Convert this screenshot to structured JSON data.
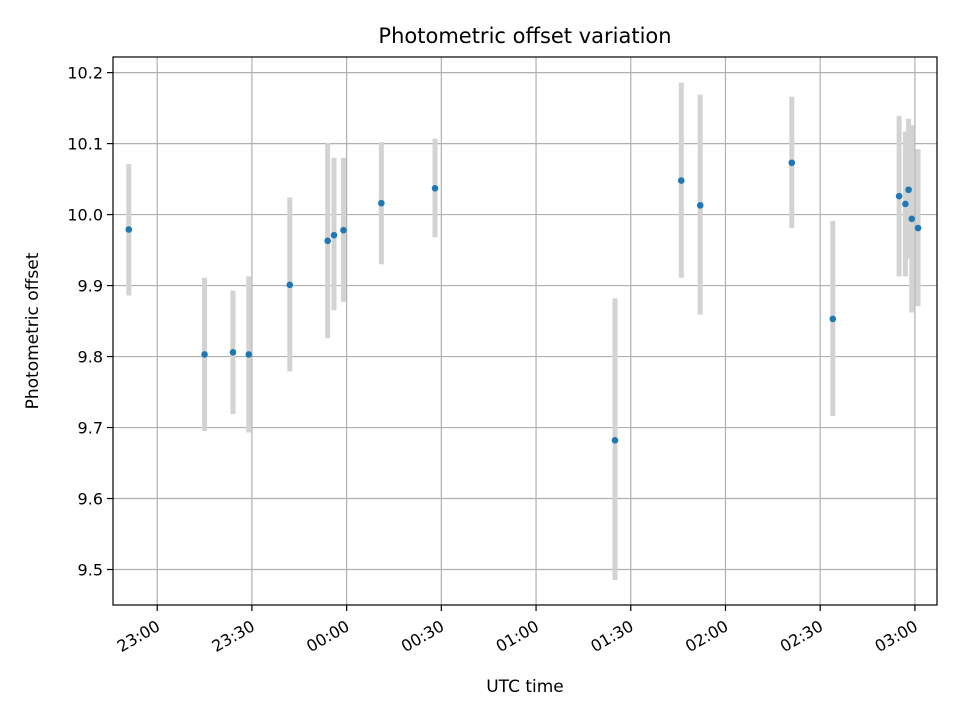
{
  "chart_data": {
    "type": "scatter",
    "title": "Photometric offset variation",
    "xlabel": "UTC time",
    "ylabel": "Photometric offset",
    "grid": true,
    "xlim": [
      "22:46",
      "03:07"
    ],
    "ylim": [
      9.45,
      10.222
    ],
    "x_ticks": [
      "23:00",
      "23:30",
      "00:00",
      "00:30",
      "01:00",
      "01:30",
      "02:00",
      "02:30",
      "03:00"
    ],
    "y_ticks": [
      "9.5",
      "9.6",
      "9.7",
      "9.8",
      "9.9",
      "10.0",
      "10.1",
      "10.2"
    ],
    "y_tick_values": [
      9.5,
      9.6,
      9.7,
      9.8,
      9.9,
      10.0,
      10.1,
      10.2
    ],
    "colors": {
      "point": "#1f77b4",
      "errorbar": "#d3d3d3",
      "grid": "#b0b0b0"
    },
    "series": [
      {
        "points": [
          {
            "time": "22:51",
            "y": 9.979,
            "err_low": 9.886,
            "err_high": 10.071
          },
          {
            "time": "23:15",
            "y": 9.803,
            "err_low": 9.695,
            "err_high": 9.911
          },
          {
            "time": "23:24",
            "y": 9.806,
            "err_low": 9.719,
            "err_high": 9.893
          },
          {
            "time": "23:29",
            "y": 9.803,
            "err_low": 9.693,
            "err_high": 9.913
          },
          {
            "time": "23:42",
            "y": 9.901,
            "err_low": 9.779,
            "err_high": 10.024
          },
          {
            "time": "23:54",
            "y": 9.963,
            "err_low": 9.826,
            "err_high": 10.101
          },
          {
            "time": "23:56",
            "y": 9.971,
            "err_low": 9.865,
            "err_high": 10.08
          },
          {
            "time": "23:59",
            "y": 9.978,
            "err_low": 9.877,
            "err_high": 10.08
          },
          {
            "time": "00:11",
            "y": 10.016,
            "err_low": 9.93,
            "err_high": 10.102
          },
          {
            "time": "00:28",
            "y": 10.037,
            "err_low": 9.968,
            "err_high": 10.107
          },
          {
            "time": "01:25",
            "y": 9.682,
            "err_low": 9.485,
            "err_high": 9.882
          },
          {
            "time": "01:46",
            "y": 10.048,
            "err_low": 9.911,
            "err_high": 10.186
          },
          {
            "time": "01:52",
            "y": 10.013,
            "err_low": 9.859,
            "err_high": 10.169
          },
          {
            "time": "02:21",
            "y": 10.073,
            "err_low": 9.981,
            "err_high": 10.166
          },
          {
            "time": "02:34",
            "y": 9.853,
            "err_low": 9.716,
            "err_high": 9.991
          },
          {
            "time": "02:55",
            "y": 10.026,
            "err_low": 9.913,
            "err_high": 10.139
          },
          {
            "time": "02:57",
            "y": 10.015,
            "err_low": 9.913,
            "err_high": 10.117
          },
          {
            "time": "02:58",
            "y": 10.035,
            "err_low": 9.938,
            "err_high": 10.135
          },
          {
            "time": "02:59",
            "y": 9.994,
            "err_low": 9.862,
            "err_high": 10.126
          },
          {
            "time": "03:01",
            "y": 9.981,
            "err_low": 9.871,
            "err_high": 10.092
          }
        ]
      }
    ]
  }
}
